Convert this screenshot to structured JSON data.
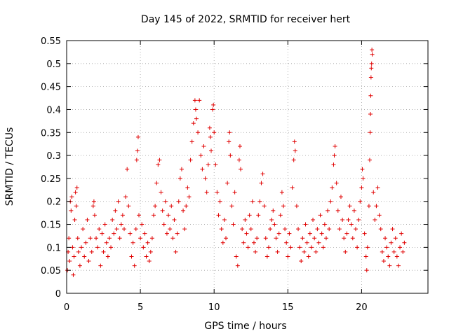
{
  "chart_data": {
    "type": "scatter",
    "title": "Day 145 of 2022, SRMTID for receiver hert",
    "xlabel": "GPS time / hours",
    "ylabel": "SRMTID / TECUs",
    "xlim": [
      0,
      24.5
    ],
    "ylim": [
      0,
      0.55
    ],
    "x_ticks": [
      0,
      5,
      10,
      15,
      20
    ],
    "x_tick_labels": [
      "0",
      "5",
      "10",
      "15",
      "20"
    ],
    "y_ticks": [
      0,
      0.05,
      0.1,
      0.15,
      0.2,
      0.25,
      0.3,
      0.35,
      0.4,
      0.45,
      0.5,
      0.55
    ],
    "y_tick_labels": [
      "0",
      "0.05",
      "0.1",
      "0.15",
      "0.2",
      "0.25",
      "0.3",
      "0.35",
      "0.4",
      "0.45",
      "0.5",
      "0.55"
    ],
    "grid": true,
    "marker": "+",
    "color": "#e00000",
    "series": [
      {
        "name": "SRMTID",
        "points": [
          [
            0.05,
            0.05
          ],
          [
            0.1,
            0.09
          ],
          [
            0.15,
            0.12
          ],
          [
            0.2,
            0.07
          ],
          [
            0.25,
            0.2
          ],
          [
            0.3,
            0.18
          ],
          [
            0.35,
            0.21
          ],
          [
            0.4,
            0.1
          ],
          [
            0.45,
            0.04
          ],
          [
            0.5,
            0.08
          ],
          [
            0.55,
            0.16
          ],
          [
            0.6,
            0.22
          ],
          [
            0.65,
            0.19
          ],
          [
            0.7,
            0.23
          ],
          [
            0.75,
            0.12
          ],
          [
            0.8,
            0.09
          ],
          [
            0.9,
            0.06
          ],
          [
            1.0,
            0.1
          ],
          [
            1.1,
            0.14
          ],
          [
            1.2,
            0.08
          ],
          [
            1.3,
            0.11
          ],
          [
            1.4,
            0.16
          ],
          [
            1.5,
            0.07
          ],
          [
            1.6,
            0.12
          ],
          [
            1.7,
            0.09
          ],
          [
            1.8,
            0.19
          ],
          [
            1.85,
            0.2
          ],
          [
            1.9,
            0.17
          ],
          [
            2.0,
            0.12
          ],
          [
            2.1,
            0.1
          ],
          [
            2.2,
            0.14
          ],
          [
            2.3,
            0.06
          ],
          [
            2.4,
            0.13
          ],
          [
            2.5,
            0.09
          ],
          [
            2.6,
            0.15
          ],
          [
            2.7,
            0.11
          ],
          [
            2.8,
            0.08
          ],
          [
            2.9,
            0.12
          ],
          [
            3.0,
            0.1
          ],
          [
            3.1,
            0.16
          ],
          [
            3.2,
            0.13
          ],
          [
            3.3,
            0.18
          ],
          [
            3.4,
            0.14
          ],
          [
            3.5,
            0.2
          ],
          [
            3.6,
            0.12
          ],
          [
            3.7,
            0.15
          ],
          [
            3.8,
            0.17
          ],
          [
            3.9,
            0.14
          ],
          [
            4.0,
            0.21
          ],
          [
            4.1,
            0.27
          ],
          [
            4.2,
            0.19
          ],
          [
            4.3,
            0.13
          ],
          [
            4.4,
            0.08
          ],
          [
            4.5,
            0.11
          ],
          [
            4.6,
            0.06
          ],
          [
            4.7,
            0.14
          ],
          [
            4.75,
            0.29
          ],
          [
            4.8,
            0.31
          ],
          [
            4.85,
            0.34
          ],
          [
            4.9,
            0.17
          ],
          [
            5.0,
            0.12
          ],
          [
            5.1,
            0.15
          ],
          [
            5.2,
            0.1
          ],
          [
            5.3,
            0.13
          ],
          [
            5.4,
            0.08
          ],
          [
            5.5,
            0.11
          ],
          [
            5.6,
            0.07
          ],
          [
            5.7,
            0.09
          ],
          [
            5.8,
            0.12
          ],
          [
            5.9,
            0.17
          ],
          [
            6.0,
            0.19
          ],
          [
            6.1,
            0.24
          ],
          [
            6.2,
            0.28
          ],
          [
            6.3,
            0.29
          ],
          [
            6.4,
            0.22
          ],
          [
            6.5,
            0.18
          ],
          [
            6.6,
            0.15
          ],
          [
            6.7,
            0.2
          ],
          [
            6.8,
            0.13
          ],
          [
            6.9,
            0.17
          ],
          [
            7.0,
            0.14
          ],
          [
            7.1,
            0.19
          ],
          [
            7.2,
            0.12
          ],
          [
            7.3,
            0.16
          ],
          [
            7.4,
            0.09
          ],
          [
            7.5,
            0.13
          ],
          [
            7.6,
            0.2
          ],
          [
            7.7,
            0.25
          ],
          [
            7.8,
            0.27
          ],
          [
            7.9,
            0.18
          ],
          [
            8.0,
            0.14
          ],
          [
            8.1,
            0.19
          ],
          [
            8.2,
            0.23
          ],
          [
            8.3,
            0.21
          ],
          [
            8.4,
            0.29
          ],
          [
            8.5,
            0.33
          ],
          [
            8.6,
            0.37
          ],
          [
            8.7,
            0.42
          ],
          [
            8.75,
            0.4
          ],
          [
            8.8,
            0.38
          ],
          [
            8.9,
            0.35
          ],
          [
            9.0,
            0.42
          ],
          [
            9.1,
            0.3
          ],
          [
            9.2,
            0.27
          ],
          [
            9.3,
            0.32
          ],
          [
            9.4,
            0.25
          ],
          [
            9.5,
            0.22
          ],
          [
            9.6,
            0.28
          ],
          [
            9.7,
            0.36
          ],
          [
            9.75,
            0.34
          ],
          [
            9.8,
            0.31
          ],
          [
            9.9,
            0.4
          ],
          [
            9.95,
            0.41
          ],
          [
            10.0,
            0.35
          ],
          [
            10.1,
            0.28
          ],
          [
            10.2,
            0.22
          ],
          [
            10.3,
            0.17
          ],
          [
            10.4,
            0.2
          ],
          [
            10.5,
            0.14
          ],
          [
            10.6,
            0.11
          ],
          [
            10.7,
            0.16
          ],
          [
            10.8,
            0.12
          ],
          [
            10.9,
            0.24
          ],
          [
            11.0,
            0.33
          ],
          [
            11.05,
            0.35
          ],
          [
            11.1,
            0.3
          ],
          [
            11.2,
            0.19
          ],
          [
            11.3,
            0.15
          ],
          [
            11.4,
            0.22
          ],
          [
            11.5,
            0.08
          ],
          [
            11.6,
            0.06
          ],
          [
            11.7,
            0.29
          ],
          [
            11.75,
            0.32
          ],
          [
            11.8,
            0.27
          ],
          [
            11.9,
            0.14
          ],
          [
            12.0,
            0.11
          ],
          [
            12.1,
            0.16
          ],
          [
            12.2,
            0.13
          ],
          [
            12.3,
            0.1
          ],
          [
            12.4,
            0.17
          ],
          [
            12.5,
            0.14
          ],
          [
            12.6,
            0.2
          ],
          [
            12.7,
            0.11
          ],
          [
            12.8,
            0.09
          ],
          [
            12.9,
            0.12
          ],
          [
            13.0,
            0.17
          ],
          [
            13.1,
            0.2
          ],
          [
            13.2,
            0.24
          ],
          [
            13.3,
            0.26
          ],
          [
            13.4,
            0.19
          ],
          [
            13.5,
            0.12
          ],
          [
            13.6,
            0.08
          ],
          [
            13.7,
            0.1
          ],
          [
            13.8,
            0.14
          ],
          [
            13.9,
            0.16
          ],
          [
            14.0,
            0.18
          ],
          [
            14.1,
            0.15
          ],
          [
            14.2,
            0.12
          ],
          [
            14.3,
            0.09
          ],
          [
            14.4,
            0.13
          ],
          [
            14.5,
            0.17
          ],
          [
            14.6,
            0.22
          ],
          [
            14.7,
            0.19
          ],
          [
            14.8,
            0.14
          ],
          [
            14.9,
            0.11
          ],
          [
            15.0,
            0.08
          ],
          [
            15.1,
            0.13
          ],
          [
            15.2,
            0.1
          ],
          [
            15.3,
            0.23
          ],
          [
            15.4,
            0.29
          ],
          [
            15.45,
            0.33
          ],
          [
            15.5,
            0.31
          ],
          [
            15.6,
            0.19
          ],
          [
            15.7,
            0.14
          ],
          [
            15.8,
            0.1
          ],
          [
            15.9,
            0.07
          ],
          [
            16.0,
            0.12
          ],
          [
            16.1,
            0.09
          ],
          [
            16.2,
            0.15
          ],
          [
            16.3,
            0.11
          ],
          [
            16.4,
            0.08
          ],
          [
            16.5,
            0.13
          ],
          [
            16.6,
            0.1
          ],
          [
            16.7,
            0.16
          ],
          [
            16.8,
            0.12
          ],
          [
            16.9,
            0.09
          ],
          [
            17.0,
            0.14
          ],
          [
            17.1,
            0.11
          ],
          [
            17.2,
            0.17
          ],
          [
            17.3,
            0.13
          ],
          [
            17.4,
            0.1
          ],
          [
            17.5,
            0.15
          ],
          [
            17.6,
            0.12
          ],
          [
            17.7,
            0.18
          ],
          [
            17.8,
            0.14
          ],
          [
            17.9,
            0.2
          ],
          [
            18.0,
            0.23
          ],
          [
            18.1,
            0.28
          ],
          [
            18.15,
            0.3
          ],
          [
            18.2,
            0.32
          ],
          [
            18.3,
            0.24
          ],
          [
            18.4,
            0.18
          ],
          [
            18.5,
            0.14
          ],
          [
            18.6,
            0.21
          ],
          [
            18.7,
            0.16
          ],
          [
            18.8,
            0.12
          ],
          [
            18.9,
            0.09
          ],
          [
            19.0,
            0.13
          ],
          [
            19.1,
            0.16
          ],
          [
            19.2,
            0.19
          ],
          [
            19.3,
            0.15
          ],
          [
            19.4,
            0.12
          ],
          [
            19.5,
            0.18
          ],
          [
            19.6,
            0.14
          ],
          [
            19.7,
            0.1
          ],
          [
            19.8,
            0.16
          ],
          [
            19.9,
            0.2
          ],
          [
            20.0,
            0.23
          ],
          [
            20.05,
            0.27
          ],
          [
            20.1,
            0.25
          ],
          [
            20.2,
            0.13
          ],
          [
            20.3,
            0.08
          ],
          [
            20.35,
            0.05
          ],
          [
            20.4,
            0.1
          ],
          [
            20.5,
            0.19
          ],
          [
            20.55,
            0.29
          ],
          [
            20.58,
            0.35
          ],
          [
            20.6,
            0.39
          ],
          [
            20.62,
            0.43
          ],
          [
            20.64,
            0.47
          ],
          [
            20.66,
            0.49
          ],
          [
            20.68,
            0.5
          ],
          [
            20.7,
            0.53
          ],
          [
            20.72,
            0.52
          ],
          [
            20.8,
            0.22
          ],
          [
            20.9,
            0.16
          ],
          [
            21.0,
            0.19
          ],
          [
            21.1,
            0.23
          ],
          [
            21.2,
            0.17
          ],
          [
            21.3,
            0.14
          ],
          [
            21.4,
            0.09
          ],
          [
            21.5,
            0.07
          ],
          [
            21.6,
            0.12
          ],
          [
            21.7,
            0.1
          ],
          [
            21.8,
            0.08
          ],
          [
            21.9,
            0.06
          ],
          [
            22.0,
            0.11
          ],
          [
            22.1,
            0.14
          ],
          [
            22.2,
            0.09
          ],
          [
            22.3,
            0.12
          ],
          [
            22.4,
            0.08
          ],
          [
            22.5,
            0.06
          ],
          [
            22.6,
            0.1
          ],
          [
            22.7,
            0.13
          ],
          [
            22.8,
            0.09
          ],
          [
            22.9,
            0.11
          ]
        ]
      }
    ]
  }
}
